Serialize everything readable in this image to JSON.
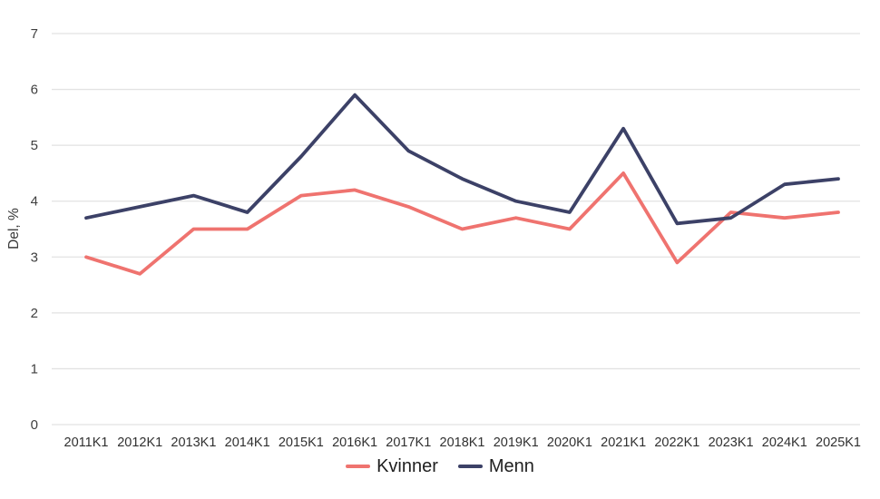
{
  "chart_data": {
    "type": "line",
    "title": "",
    "xlabel": "",
    "ylabel": "Del, %",
    "ylim": [
      0,
      7
    ],
    "yticks": [
      0,
      1,
      2,
      3,
      4,
      5,
      6,
      7
    ],
    "grid": true,
    "legend_position": "bottom",
    "categories": [
      "2011K1",
      "2012K1",
      "2013K1",
      "2014K1",
      "2015K1",
      "2016K1",
      "2017K1",
      "2018K1",
      "2019K1",
      "2020K1",
      "2021K1",
      "2022K1",
      "2023K1",
      "2024K1",
      "2025K1"
    ],
    "series": [
      {
        "name": "Kvinner",
        "color": "#ef736f",
        "values": [
          3.0,
          2.7,
          3.5,
          3.5,
          4.1,
          4.2,
          3.9,
          3.5,
          3.7,
          3.5,
          4.5,
          2.9,
          3.8,
          3.7,
          3.8
        ]
      },
      {
        "name": "Menn",
        "color": "#3c4167",
        "values": [
          3.7,
          3.9,
          4.1,
          3.8,
          4.8,
          5.9,
          4.9,
          4.4,
          4.0,
          3.8,
          5.3,
          3.6,
          3.7,
          4.3,
          4.4
        ]
      }
    ]
  },
  "style": {
    "gridline_color": "#e2e2e2",
    "tick_label_color": "#3f3f3f",
    "axis_title_color": "#3a3a3a",
    "legend_text_color": "#1f1f1f",
    "background_color": "#ffffff"
  }
}
